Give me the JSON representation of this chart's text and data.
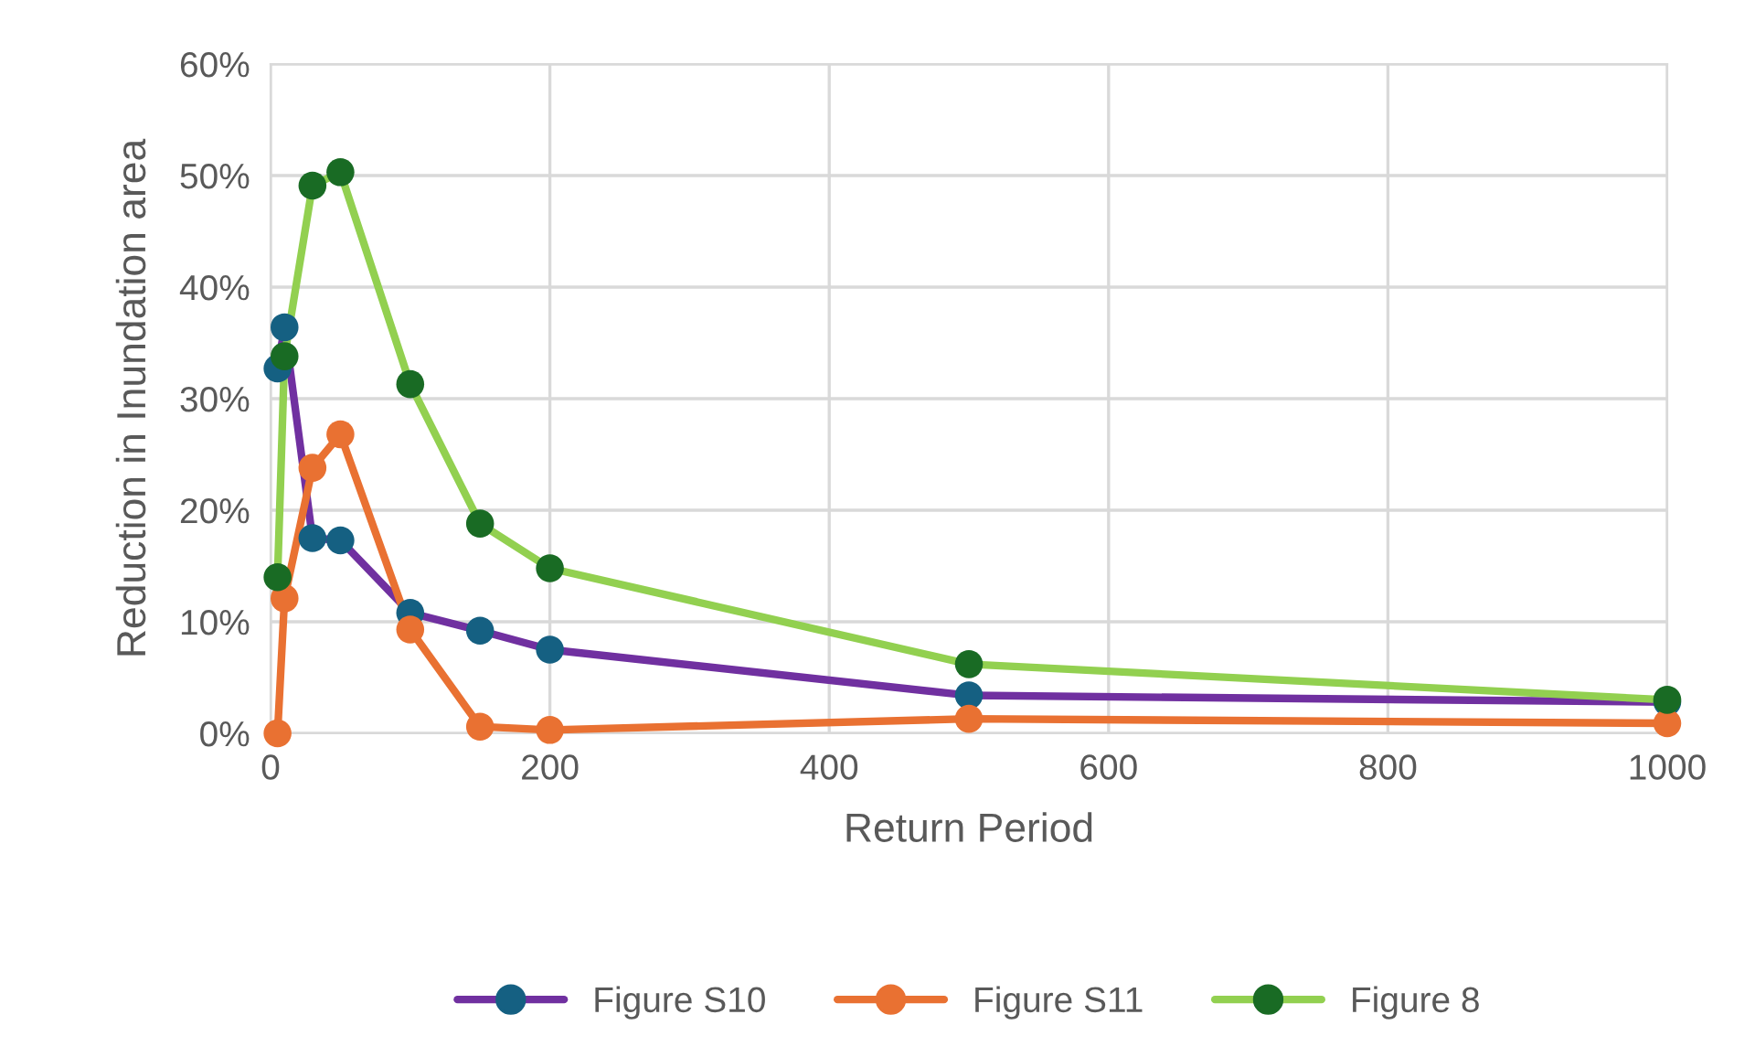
{
  "chart_data": {
    "type": "line",
    "xlabel": "Return Period",
    "ylabel": "Reduction in Inundation area",
    "x": [
      5,
      10,
      30,
      50,
      100,
      150,
      200,
      500,
      1000
    ],
    "series": [
      {
        "name": "Figure S10",
        "color": "#7030a0",
        "colors": [
          "#156082",
          "#156082",
          "#156082",
          "#156082",
          "#156082",
          "#156082",
          "#156082",
          "#156082",
          "#156082"
        ],
        "values": [
          32.7,
          36.4,
          17.5,
          17.3,
          10.8,
          9.2,
          7.5,
          3.4,
          2.8
        ]
      },
      {
        "name": "Figure S11",
        "color": "#e97132",
        "colors": [
          "#e97132",
          "#e97132",
          "#e97132",
          "#e97132",
          "#e97132",
          "#e97132",
          "#e97132",
          "#e97132",
          "#e97132"
        ],
        "values": [
          0,
          12.1,
          23.8,
          26.8,
          9.3,
          0.6,
          0.3,
          1.3,
          0.9
        ]
      },
      {
        "name": "Figure 8",
        "color": "#92d050",
        "colors": [
          "#196b24",
          "#196b24",
          "#196b24",
          "#196b24",
          "#196b24",
          "#196b24",
          "#196b24",
          "#196b24",
          "#196b24"
        ],
        "values": [
          14,
          33.8,
          49.1,
          50.3,
          31.3,
          18.8,
          14.8,
          6.2,
          3.0
        ]
      }
    ],
    "xlim": [
      0,
      1000
    ],
    "xticks": [
      0,
      200,
      400,
      600,
      800,
      1000
    ],
    "ylim": [
      0,
      60
    ],
    "yticks": [
      {
        "value": 0,
        "label": "0%"
      },
      {
        "value": 10,
        "label": "10%"
      },
      {
        "value": 20,
        "label": "20%"
      },
      {
        "value": 30,
        "label": "30%"
      },
      {
        "value": 40,
        "label": "40%"
      },
      {
        "value": 50,
        "label": "50%"
      },
      {
        "value": 60,
        "label": "60%"
      }
    ],
    "grid": true,
    "legend": "bottom",
    "marker": "circle",
    "line_style": "solid"
  }
}
